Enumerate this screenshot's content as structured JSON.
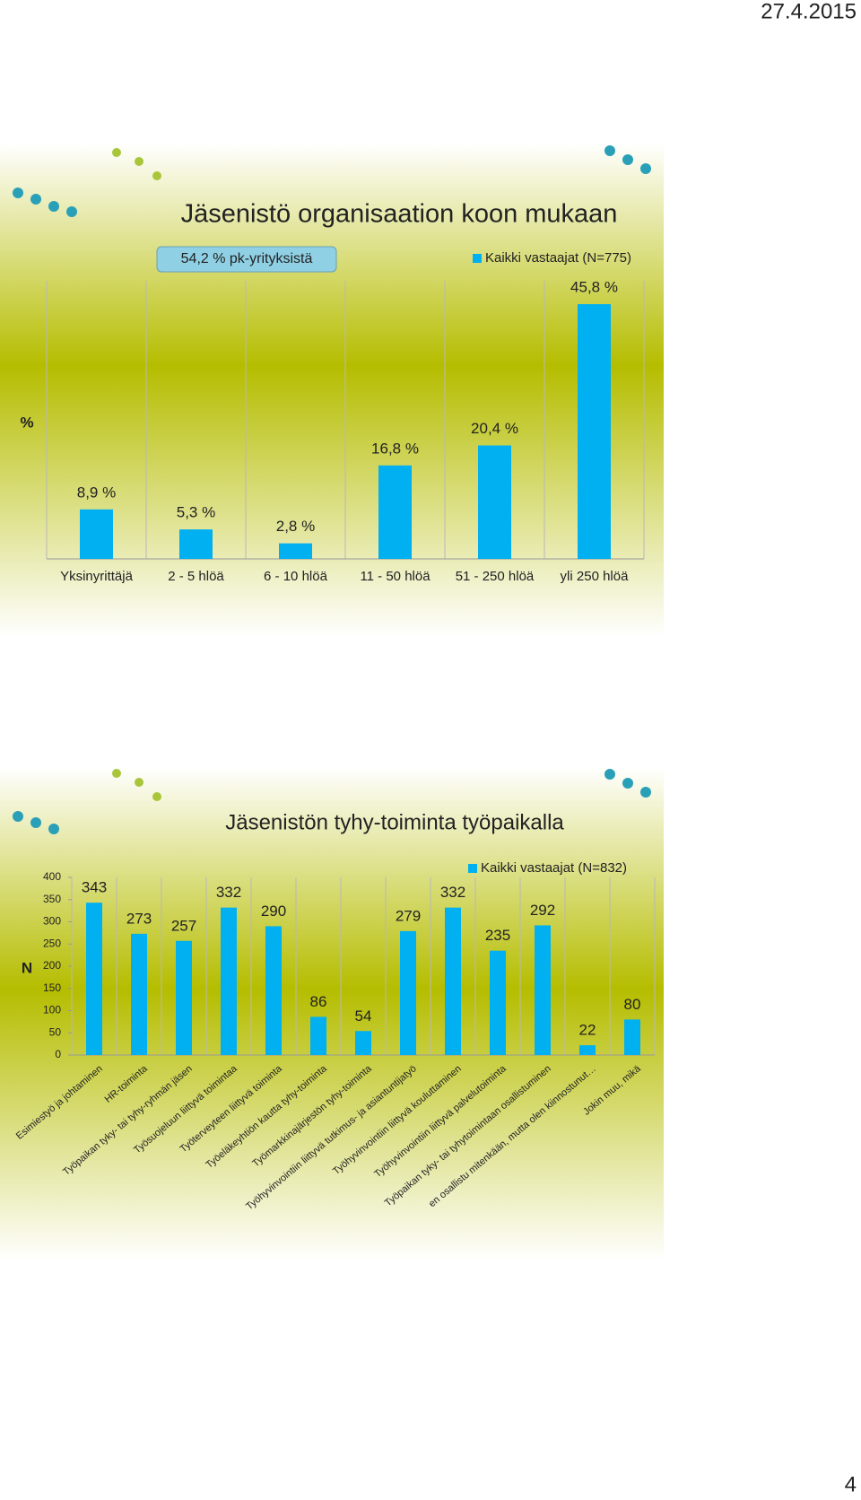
{
  "date": "27.4.2015",
  "page_number": "4",
  "chart_data": [
    {
      "type": "bar",
      "title": "Jäsenistö organisaation koon mukaan",
      "annotation": "54,2 % pk-yrityksistä",
      "y_label": "%",
      "categories": [
        "Yksinyrittäjä",
        "2 - 5 hlöä",
        "6 - 10 hlöä",
        "11 - 50 hlöä",
        "51 - 250 hlöä",
        "yli 250 hlöä"
      ],
      "series": [
        {
          "name": "Kaikki vastaajat (N=775)",
          "color": "#00b0f0",
          "values": [
            8.9,
            5.3,
            2.8,
            16.8,
            20.4,
            45.8
          ],
          "value_labels": [
            "8,9 %",
            "5,3 %",
            "2,8 %",
            "16,8 %",
            "20,4 %",
            "45,8 %"
          ]
        }
      ],
      "ylim": [
        0,
        50
      ],
      "grid": true
    },
    {
      "type": "bar",
      "title": "Jäsenistön tyhy-toiminta työpaikalla",
      "y_label": "N",
      "categories": [
        "Esimiestyö ja johtaminen",
        "HR-toiminta",
        "Työpaikan tyky- tai tyhy-ryhmän jäsen",
        "Työsuojeluun liittyvä toimintaa",
        "Työterveyteen liittyvä toiminta",
        "Työeläkeyhtiön kautta tyhy-toiminta",
        "Työmarkkinajärjestön tyhy-toiminta",
        "Työhyvinvointiin liittyvä tutkimus- ja asiantuntijatyö",
        "Työhyvinvointiin liittyvä kouluttaminen",
        "Työhyvinvointiin liittyvä palvelutoiminta",
        "Työpaikan tyky- tai tyhytoimintaan osallistuminen",
        "en osallistu mitenkään, mutta olen kiinnostunut…",
        "Jokin muu, mikä"
      ],
      "series": [
        {
          "name": "Kaikki vastaajat (N=832)",
          "color": "#00b0f0",
          "values": [
            343,
            273,
            257,
            332,
            290,
            86,
            54,
            279,
            332,
            235,
            292,
            22,
            80
          ]
        }
      ],
      "ylim": [
        0,
        400
      ],
      "yticks": [
        0,
        50,
        100,
        150,
        200,
        250,
        300,
        350,
        400
      ],
      "grid": true
    }
  ]
}
